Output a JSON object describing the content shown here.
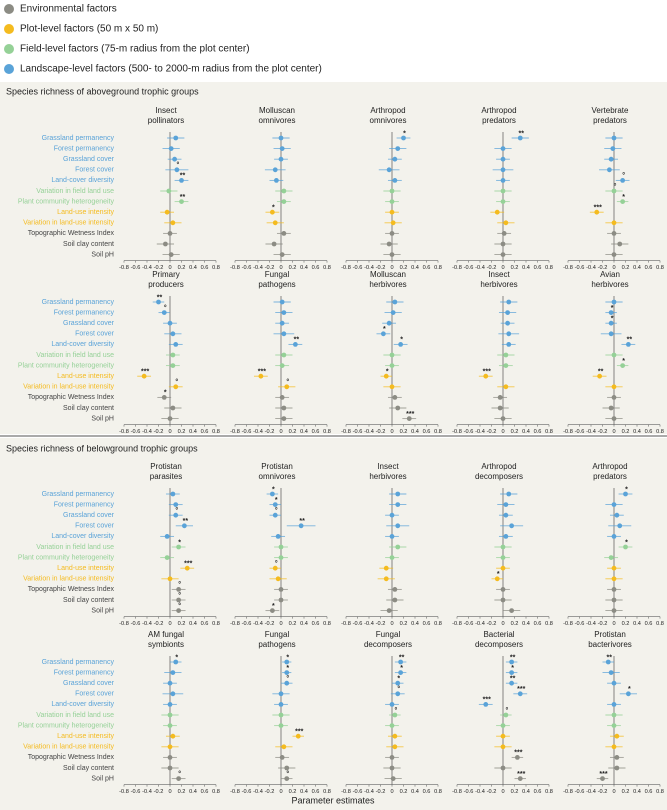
{
  "legend": [
    {
      "name": "Environmental factors",
      "color": "#8c8c84"
    },
    {
      "name": "Plot-level factors (50 m x 50 m)",
      "color": "#f4bb1f"
    },
    {
      "name": "Field-level factors (75-m radius from the plot center)",
      "color": "#95d197"
    },
    {
      "name": "Landscape-level factors (500- to 2000-m radius from the plot center)",
      "color": "#5aa3d8"
    }
  ],
  "factors": [
    {
      "name": "Grassland permanency",
      "group": 3
    },
    {
      "name": "Forest permanency",
      "group": 3
    },
    {
      "name": "Grassland cover",
      "group": 3
    },
    {
      "name": "Forest cover",
      "group": 3
    },
    {
      "name": "Land-cover diversity",
      "group": 3
    },
    {
      "name": "Variation in field land use",
      "group": 2
    },
    {
      "name": "Plant community heterogeneity",
      "group": 2
    },
    {
      "name": "Land-use intensity",
      "group": 1
    },
    {
      "name": "Variation in land-use intensity",
      "group": 1
    },
    {
      "name": "Topographic Wetness Index",
      "group": 0
    },
    {
      "name": "Soil clay content",
      "group": 0
    },
    {
      "name": "Soil pH",
      "group": 0
    }
  ],
  "sections": [
    "Species richness of aboveground trophic groups",
    "Species richness of belowground trophic groups"
  ],
  "x_label": "Parameter estimates",
  "chart_data": [
    {
      "type": "forest",
      "section": 0,
      "title": [
        "Insect",
        "pollinators"
      ],
      "values": [
        0.1,
        0.02,
        0.08,
        0.12,
        0.2,
        -0.02,
        0.2,
        -0.05,
        0.05,
        0.0,
        -0.08,
        0.02
      ],
      "errors": [
        0.15,
        0.15,
        0.12,
        0.2,
        0.12,
        0.15,
        0.12,
        0.12,
        0.15,
        0.12,
        0.15,
        0.15
      ],
      "significance": [
        null,
        null,
        null,
        "°",
        "**",
        null,
        "**",
        null,
        null,
        null,
        null,
        null
      ],
      "xlim": [
        -0.8,
        0.8
      ],
      "xticks": [
        -0.8,
        -0.6,
        -0.4,
        -0.2,
        0,
        0.2,
        0.4,
        0.6,
        0.8
      ]
    },
    {
      "type": "forest",
      "section": 0,
      "title": [
        "Molluscan",
        "omnivores"
      ],
      "values": [
        0.0,
        0.02,
        0.0,
        -0.1,
        -0.08,
        0.05,
        0.05,
        -0.15,
        -0.1,
        0.05,
        -0.12,
        0.02
      ],
      "errors": [
        0.15,
        0.15,
        0.12,
        0.18,
        0.12,
        0.15,
        0.12,
        0.12,
        0.15,
        0.12,
        0.15,
        0.15
      ],
      "significance": [
        null,
        null,
        null,
        null,
        null,
        null,
        null,
        "*",
        null,
        null,
        null,
        null
      ],
      "xlim": [
        -0.8,
        0.8
      ],
      "xticks": [
        -0.8,
        -0.6,
        -0.4,
        -0.2,
        0,
        0.2,
        0.4,
        0.6,
        0.8
      ]
    },
    {
      "type": "forest",
      "section": 0,
      "title": [
        "Arthropod",
        "omnivores"
      ],
      "values": [
        0.2,
        0.1,
        0.05,
        -0.05,
        0.05,
        0.0,
        0.0,
        0.0,
        0.02,
        0.0,
        -0.05,
        0.0
      ],
      "errors": [
        0.12,
        0.15,
        0.12,
        0.18,
        0.12,
        0.15,
        0.12,
        0.12,
        0.15,
        0.12,
        0.15,
        0.15
      ],
      "significance": [
        "*",
        null,
        null,
        null,
        null,
        null,
        null,
        null,
        null,
        null,
        null,
        null
      ],
      "xlim": [
        -0.8,
        0.8
      ],
      "xticks": [
        -0.8,
        -0.6,
        -0.4,
        -0.2,
        0,
        0.2,
        0.4,
        0.6,
        0.8
      ]
    },
    {
      "type": "forest",
      "section": 0,
      "title": [
        "Arthropod",
        "predators"
      ],
      "values": [
        0.3,
        0.0,
        0.0,
        0.0,
        0.0,
        0.0,
        0.0,
        -0.1,
        0.05,
        0.02,
        0.0,
        0.0
      ],
      "errors": [
        0.15,
        0.15,
        0.12,
        0.18,
        0.12,
        0.15,
        0.12,
        0.12,
        0.15,
        0.12,
        0.15,
        0.15
      ],
      "significance": [
        "**",
        null,
        null,
        null,
        null,
        null,
        null,
        null,
        null,
        null,
        null,
        null
      ],
      "xlim": [
        -0.8,
        0.8
      ],
      "xticks": [
        -0.8,
        -0.6,
        -0.4,
        -0.2,
        0,
        0.2,
        0.4,
        0.6,
        0.8
      ]
    },
    {
      "type": "forest",
      "section": 0,
      "title": [
        "Vertebrate",
        "predators"
      ],
      "values": [
        0.0,
        -0.02,
        -0.05,
        -0.08,
        0.15,
        0.0,
        0.15,
        -0.3,
        0.0,
        0.0,
        0.1,
        0.0
      ],
      "errors": [
        0.15,
        0.15,
        0.12,
        0.18,
        0.12,
        0.15,
        0.1,
        0.12,
        0.15,
        0.12,
        0.15,
        0.15
      ],
      "significance": [
        null,
        null,
        null,
        null,
        "°",
        "°",
        "*",
        "***",
        null,
        null,
        null,
        null
      ],
      "xlim": [
        -0.8,
        0.8
      ],
      "xticks": [
        -0.8,
        -0.6,
        -0.4,
        -0.2,
        0,
        0.2,
        0.4,
        0.6,
        0.8
      ]
    },
    {
      "type": "forest",
      "section": 0,
      "title": [
        "Primary",
        "producers"
      ],
      "values": [
        -0.2,
        -0.1,
        0.0,
        0.05,
        0.1,
        0.05,
        0.05,
        -0.45,
        0.1,
        -0.1,
        0.05,
        0.0
      ],
      "errors": [
        0.1,
        0.1,
        0.12,
        0.15,
        0.12,
        0.12,
        0.12,
        0.12,
        0.12,
        0.12,
        0.15,
        0.15
      ],
      "significance": [
        "**",
        "°",
        null,
        null,
        null,
        null,
        null,
        "***",
        "°",
        "*",
        null,
        null
      ],
      "xlim": [
        -0.8,
        0.8
      ],
      "xticks": [
        -0.8,
        -0.6,
        -0.4,
        -0.2,
        0,
        0.2,
        0.4,
        0.6,
        0.8
      ]
    },
    {
      "type": "forest",
      "section": 0,
      "title": [
        "Fungal",
        "pathogens"
      ],
      "values": [
        0.02,
        0.05,
        0.02,
        0.05,
        0.25,
        0.05,
        0.02,
        -0.35,
        0.1,
        0.02,
        0.05,
        0.05
      ],
      "errors": [
        0.15,
        0.15,
        0.12,
        0.18,
        0.12,
        0.15,
        0.12,
        0.12,
        0.15,
        0.12,
        0.15,
        0.15
      ],
      "significance": [
        null,
        null,
        null,
        null,
        "**",
        null,
        null,
        "***",
        "°",
        null,
        null,
        null
      ],
      "xlim": [
        -0.8,
        0.8
      ],
      "xticks": [
        -0.8,
        -0.6,
        -0.4,
        -0.2,
        0,
        0.2,
        0.4,
        0.6,
        0.8
      ]
    },
    {
      "type": "forest",
      "section": 0,
      "title": [
        "Molluscan",
        "herbivores"
      ],
      "values": [
        0.05,
        0.02,
        -0.05,
        -0.15,
        0.15,
        0.0,
        0.0,
        -0.1,
        0.0,
        0.05,
        0.1,
        0.3
      ],
      "errors": [
        0.15,
        0.15,
        0.12,
        0.12,
        0.12,
        0.15,
        0.12,
        0.1,
        0.15,
        0.12,
        0.15,
        0.12
      ],
      "significance": [
        null,
        null,
        null,
        "*",
        "*",
        null,
        null,
        "*",
        null,
        null,
        null,
        "***"
      ],
      "xlim": [
        -0.8,
        0.8
      ],
      "xticks": [
        -0.8,
        -0.6,
        -0.4,
        -0.2,
        0,
        0.2,
        0.4,
        0.6,
        0.8
      ]
    },
    {
      "type": "forest",
      "section": 0,
      "title": [
        "Insect",
        "herbivores"
      ],
      "values": [
        0.1,
        0.08,
        0.08,
        0.1,
        0.1,
        0.05,
        0.05,
        -0.3,
        0.05,
        -0.05,
        -0.05,
        0.0
      ],
      "errors": [
        0.15,
        0.15,
        0.12,
        0.18,
        0.12,
        0.15,
        0.12,
        0.12,
        0.15,
        0.12,
        0.15,
        0.15
      ],
      "significance": [
        null,
        null,
        null,
        null,
        null,
        null,
        null,
        "***",
        null,
        null,
        null,
        null
      ],
      "xlim": [
        -0.8,
        0.8
      ],
      "xticks": [
        -0.8,
        -0.6,
        -0.4,
        -0.2,
        0,
        0.2,
        0.4,
        0.6,
        0.8
      ]
    },
    {
      "type": "forest",
      "section": 0,
      "title": [
        "Avian",
        "herbivores"
      ],
      "values": [
        0.0,
        -0.05,
        -0.05,
        -0.05,
        0.25,
        0.0,
        0.15,
        -0.25,
        0.0,
        0.0,
        -0.05,
        0.0
      ],
      "errors": [
        0.15,
        0.1,
        0.1,
        0.18,
        0.12,
        0.15,
        0.1,
        0.12,
        0.15,
        0.12,
        0.15,
        0.15
      ],
      "significance": [
        null,
        "*",
        "*",
        null,
        "**",
        null,
        "*",
        "**",
        null,
        null,
        null,
        null
      ],
      "xlim": [
        -0.8,
        0.8
      ],
      "xticks": [
        -0.8,
        -0.6,
        -0.4,
        -0.2,
        0,
        0.2,
        0.4,
        0.6,
        0.8
      ]
    },
    {
      "type": "forest",
      "section": 1,
      "title": [
        "Protistan",
        "parasites"
      ],
      "values": [
        0.05,
        0.1,
        0.1,
        0.25,
        -0.05,
        0.15,
        -0.05,
        0.3,
        0.0,
        0.15,
        0.15,
        0.15
      ],
      "errors": [
        0.12,
        0.12,
        0.12,
        0.15,
        0.12,
        0.12,
        0.12,
        0.12,
        0.15,
        0.12,
        0.12,
        0.12
      ],
      "significance": [
        null,
        null,
        "°",
        "**",
        null,
        "*",
        null,
        "***",
        null,
        "°",
        "°",
        "°"
      ],
      "xlim": [
        -0.8,
        0.8
      ],
      "xticks": [
        -0.8,
        -0.6,
        -0.4,
        -0.2,
        0,
        0.2,
        0.4,
        0.6,
        0.8
      ]
    },
    {
      "type": "forest",
      "section": 1,
      "title": [
        "Protistan",
        "omnivores"
      ],
      "values": [
        -0.15,
        -0.1,
        -0.1,
        0.35,
        -0.05,
        0.0,
        0.0,
        -0.1,
        -0.05,
        0.0,
        0.0,
        -0.15
      ],
      "errors": [
        0.1,
        0.1,
        0.1,
        0.25,
        0.12,
        0.12,
        0.12,
        0.1,
        0.15,
        0.12,
        0.12,
        0.12
      ],
      "significance": [
        "*",
        "*",
        "°",
        "**",
        null,
        null,
        null,
        "°",
        null,
        null,
        null,
        "*"
      ],
      "xlim": [
        -0.8,
        0.8
      ],
      "xticks": [
        -0.8,
        -0.6,
        -0.4,
        -0.2,
        0,
        0.2,
        0.4,
        0.6,
        0.8
      ]
    },
    {
      "type": "forest",
      "section": 1,
      "title": [
        "Insect",
        "herbivores"
      ],
      "values": [
        0.1,
        0.1,
        0.0,
        0.1,
        0.0,
        0.1,
        0.0,
        -0.1,
        -0.1,
        0.05,
        0.05,
        -0.05
      ],
      "errors": [
        0.15,
        0.15,
        0.12,
        0.2,
        0.12,
        0.15,
        0.12,
        0.12,
        0.15,
        0.12,
        0.15,
        0.15
      ],
      "significance": [
        null,
        null,
        null,
        null,
        null,
        null,
        null,
        null,
        null,
        null,
        null,
        null
      ],
      "xlim": [
        -0.8,
        0.8
      ],
      "xticks": [
        -0.8,
        -0.6,
        -0.4,
        -0.2,
        0,
        0.2,
        0.4,
        0.6,
        0.8
      ]
    },
    {
      "type": "forest",
      "section": 1,
      "title": [
        "Arthropod",
        "decomposers"
      ],
      "values": [
        0.1,
        0.05,
        0.05,
        0.15,
        0.05,
        0.0,
        0.0,
        0.0,
        -0.1,
        0.0,
        0.0,
        0.15
      ],
      "errors": [
        0.15,
        0.15,
        0.12,
        0.2,
        0.12,
        0.15,
        0.12,
        0.12,
        0.1,
        0.12,
        0.15,
        0.15
      ],
      "significance": [
        null,
        null,
        null,
        null,
        null,
        null,
        null,
        null,
        "*",
        null,
        null,
        null
      ],
      "xlim": [
        -0.8,
        0.8
      ],
      "xticks": [
        -0.8,
        -0.6,
        -0.4,
        -0.2,
        0,
        0.2,
        0.4,
        0.6,
        0.8
      ]
    },
    {
      "type": "forest",
      "section": 1,
      "title": [
        "Arthropod",
        "predators"
      ],
      "values": [
        0.2,
        0.0,
        0.05,
        0.1,
        0.0,
        0.2,
        -0.05,
        0.0,
        0.0,
        0.0,
        0.0,
        0.0
      ],
      "errors": [
        0.12,
        0.15,
        0.12,
        0.2,
        0.12,
        0.12,
        0.12,
        0.12,
        0.15,
        0.12,
        0.15,
        0.15
      ],
      "significance": [
        "*",
        null,
        null,
        null,
        null,
        "*",
        null,
        null,
        null,
        null,
        null,
        null
      ],
      "xlim": [
        -0.8,
        0.8
      ],
      "xticks": [
        -0.8,
        -0.6,
        -0.4,
        -0.2,
        0,
        0.2,
        0.4,
        0.6,
        0.8
      ]
    },
    {
      "type": "forest",
      "section": 1,
      "title": [
        "AM fungal",
        "symbionts"
      ],
      "values": [
        0.1,
        0.05,
        0.0,
        0.05,
        0.0,
        0.0,
        0.0,
        0.05,
        0.0,
        0.0,
        0.0,
        0.15
      ],
      "errors": [
        0.1,
        0.15,
        0.12,
        0.18,
        0.12,
        0.15,
        0.12,
        0.12,
        0.15,
        0.12,
        0.15,
        0.12
      ],
      "significance": [
        "*",
        null,
        null,
        null,
        null,
        null,
        null,
        null,
        null,
        null,
        null,
        "°"
      ],
      "xlim": [
        -0.8,
        0.8
      ],
      "xticks": [
        -0.8,
        -0.6,
        -0.4,
        -0.2,
        0,
        0.2,
        0.4,
        0.6,
        0.8
      ]
    },
    {
      "type": "forest",
      "section": 1,
      "title": [
        "Fungal",
        "pathogens"
      ],
      "values": [
        0.1,
        0.1,
        0.1,
        0.0,
        0.0,
        0.0,
        0.0,
        0.3,
        0.05,
        0.02,
        0.1,
        0.1
      ],
      "errors": [
        0.08,
        0.08,
        0.1,
        0.15,
        0.12,
        0.15,
        0.12,
        0.1,
        0.15,
        0.12,
        0.15,
        0.1
      ],
      "significance": [
        "*",
        "*",
        "°",
        null,
        null,
        null,
        null,
        "***",
        null,
        null,
        null,
        "°"
      ],
      "xlim": [
        -0.8,
        0.8
      ],
      "xticks": [
        -0.8,
        -0.6,
        -0.4,
        -0.2,
        0,
        0.2,
        0.4,
        0.6,
        0.8
      ]
    },
    {
      "type": "forest",
      "section": 1,
      "title": [
        "Fungal",
        "decomposers"
      ],
      "values": [
        0.15,
        0.15,
        0.1,
        0.1,
        0.0,
        0.05,
        0.0,
        0.05,
        0.05,
        0.0,
        0.0,
        0.02
      ],
      "errors": [
        0.1,
        0.1,
        0.1,
        0.12,
        0.12,
        0.1,
        0.12,
        0.12,
        0.15,
        0.12,
        0.15,
        0.15
      ],
      "significance": [
        "**",
        "*",
        "*",
        "°",
        null,
        "°",
        null,
        null,
        null,
        null,
        null,
        null
      ],
      "xlim": [
        -0.8,
        0.8
      ],
      "xticks": [
        -0.8,
        -0.6,
        -0.4,
        -0.2,
        0,
        0.2,
        0.4,
        0.6,
        0.8
      ]
    },
    {
      "type": "forest",
      "section": 1,
      "title": [
        "Bacterial",
        "decomposers"
      ],
      "values": [
        0.15,
        0.15,
        0.15,
        0.3,
        -0.3,
        0.05,
        0.0,
        0.0,
        0.0,
        0.25,
        0.0,
        0.3
      ],
      "errors": [
        0.1,
        0.1,
        0.1,
        0.12,
        0.12,
        0.1,
        0.12,
        0.12,
        0.15,
        0.1,
        0.15,
        0.1
      ],
      "significance": [
        "**",
        "*",
        "**",
        "***",
        "***",
        "°",
        null,
        null,
        null,
        "***",
        null,
        "***"
      ],
      "xlim": [
        -0.8,
        0.8
      ],
      "xticks": [
        -0.8,
        -0.6,
        -0.4,
        -0.2,
        0,
        0.2,
        0.4,
        0.6,
        0.8
      ]
    },
    {
      "type": "forest",
      "section": 1,
      "title": [
        "Protistan",
        "bacterivores"
      ],
      "values": [
        -0.1,
        -0.05,
        0.0,
        0.25,
        0.0,
        0.0,
        0.0,
        0.05,
        0.0,
        0.05,
        0.05,
        -0.2
      ],
      "errors": [
        0.1,
        0.15,
        0.12,
        0.15,
        0.12,
        0.15,
        0.12,
        0.12,
        0.15,
        0.12,
        0.15,
        0.1
      ],
      "significance": [
        "**",
        null,
        null,
        "*",
        null,
        null,
        null,
        null,
        null,
        null,
        null,
        "***"
      ],
      "xlim": [
        -0.8,
        0.8
      ],
      "xticks": [
        -0.8,
        -0.6,
        -0.4,
        -0.2,
        0,
        0.2,
        0.4,
        0.6,
        0.8
      ]
    }
  ]
}
